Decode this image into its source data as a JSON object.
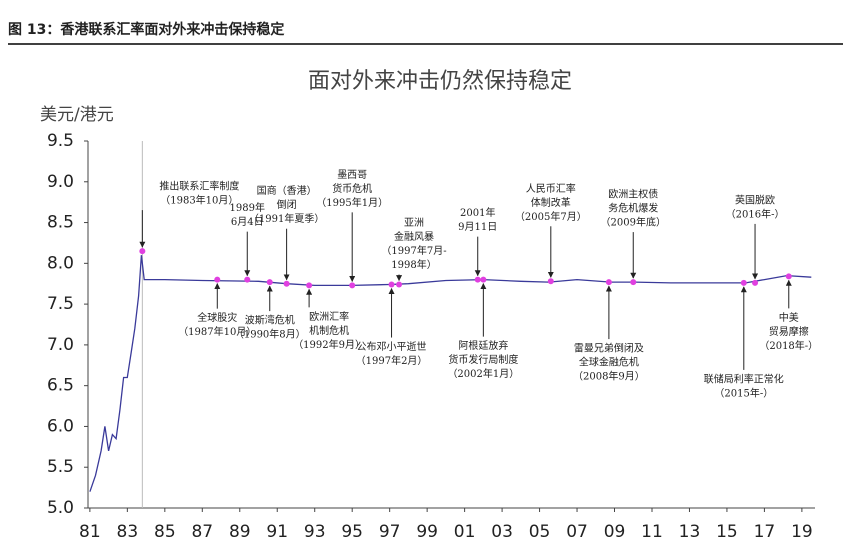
{
  "header": {
    "title": "图 13：香港联系汇率面对外来冲击保持稳定"
  },
  "chart_data": {
    "type": "line",
    "title": "面对外来冲击仍然保持稳定",
    "y_label": "美元/港元",
    "x": [
      1981.0,
      1981.3,
      1981.6,
      1981.8,
      1982.0,
      1982.2,
      1982.4,
      1982.6,
      1982.8,
      1983.0,
      1983.2,
      1983.4,
      1983.6,
      1983.75,
      1983.9,
      1985.0,
      1987.0,
      1990.0,
      1991.5,
      1993.0,
      1995.0,
      1997.0,
      1998.0,
      2000.0,
      2002.0,
      2004.0,
      2005.5,
      2007.0,
      2008.8,
      2010.0,
      2012.0,
      2014.0,
      2016.0,
      2017.0,
      2018.2,
      2019.5
    ],
    "series": [
      {
        "name": "美元/港元",
        "color": "#3a3a9a",
        "values": [
          5.2,
          5.4,
          5.7,
          6.0,
          5.7,
          5.9,
          5.85,
          6.2,
          6.6,
          6.6,
          6.9,
          7.2,
          7.6,
          8.1,
          7.8,
          7.8,
          7.79,
          7.78,
          7.75,
          7.73,
          7.73,
          7.74,
          7.75,
          7.79,
          7.8,
          7.78,
          7.77,
          7.8,
          7.77,
          7.77,
          7.76,
          7.76,
          7.76,
          7.8,
          7.85,
          7.83
        ]
      }
    ],
    "xlim": [
      1980.9,
      2019.7
    ],
    "xticks": [
      {
        "value": 1981,
        "label": "81"
      },
      {
        "value": 1983,
        "label": "83"
      },
      {
        "value": 1985,
        "label": "85"
      },
      {
        "value": 1987,
        "label": "87"
      },
      {
        "value": 1989,
        "label": "89"
      },
      {
        "value": 1991,
        "label": "91"
      },
      {
        "value": 1993,
        "label": "93"
      },
      {
        "value": 1995,
        "label": "95"
      },
      {
        "value": 1997,
        "label": "97"
      },
      {
        "value": 1999,
        "label": "99"
      },
      {
        "value": 2001,
        "label": "01"
      },
      {
        "value": 2003,
        "label": "03"
      },
      {
        "value": 2005,
        "label": "05"
      },
      {
        "value": 2007,
        "label": "07"
      },
      {
        "value": 2009,
        "label": "09"
      },
      {
        "value": 2011,
        "label": "11"
      },
      {
        "value": 2013,
        "label": "13"
      },
      {
        "value": 2015,
        "label": "15"
      },
      {
        "value": 2017,
        "label": "17"
      },
      {
        "value": 2019,
        "label": "19"
      }
    ],
    "ylim": [
      5,
      9.5
    ],
    "yticks": [
      {
        "value": 5,
        "label": "5.0"
      },
      5.5,
      {
        "value": 6,
        "label": "6.0"
      },
      6.5,
      {
        "value": 7,
        "label": "7.0"
      },
      7.5,
      {
        "value": 8,
        "label": "8.0"
      },
      8.5,
      {
        "value": 9,
        "label": "9.0"
      },
      9.5
    ],
    "reference_line_x": 1983.8,
    "marker_color": "#e040e0",
    "annotations": [
      {
        "x": 1983.8,
        "y": 8.15,
        "side": "above",
        "lines": [
          "推出联系汇率制度",
          "（1983年10月）"
        ]
      },
      {
        "x": 1989.4,
        "y": 7.8,
        "side": "above",
        "lines": [
          "1989年",
          "6月4日"
        ]
      },
      {
        "x": 1991.5,
        "y": 7.75,
        "side": "above",
        "lines": [
          "国商（香港）",
          "倒闭",
          "（1991年夏季）"
        ]
      },
      {
        "x": 1995.0,
        "y": 7.73,
        "side": "above",
        "lines": [
          "墨西哥",
          "货币危机",
          "（1995年1月）"
        ]
      },
      {
        "x": 1997.5,
        "y": 7.74,
        "side": "above",
        "lines": [
          "亚洲",
          "金融风暴",
          "（1997年7月-",
          "1998年）"
        ]
      },
      {
        "x": 2001.7,
        "y": 7.8,
        "side": "above",
        "lines": [
          "2001年",
          "9月11日"
        ]
      },
      {
        "x": 2005.6,
        "y": 7.78,
        "side": "above",
        "lines": [
          "人民币汇率",
          "体制改革",
          "（2005年7月）"
        ]
      },
      {
        "x": 2010.0,
        "y": 7.77,
        "side": "above",
        "lines": [
          "欧洲主权债",
          "务危机爆发",
          "（2009年底）"
        ]
      },
      {
        "x": 2016.5,
        "y": 7.76,
        "side": "above",
        "lines": [
          "英国脱欧",
          "（2016年-）"
        ]
      },
      {
        "x": 1987.8,
        "y": 7.8,
        "side": "below",
        "lines": [
          "全球股灾",
          "（1987年10月）"
        ]
      },
      {
        "x": 1990.6,
        "y": 7.77,
        "side": "below",
        "lines": [
          "波斯湾危机",
          "（1990年8月）"
        ]
      },
      {
        "x": 1992.7,
        "y": 7.73,
        "side": "below",
        "lines": [
          "欧洲汇率",
          "机制危机",
          "（1992年9月）"
        ]
      },
      {
        "x": 1997.1,
        "y": 7.74,
        "side": "below",
        "lines": [
          "公布邓小平逝世",
          "（1997年2月）"
        ]
      },
      {
        "x": 2002.0,
        "y": 7.8,
        "side": "below",
        "lines": [
          "阿根廷放弃",
          "货币发行局制度",
          "（2002年1月）"
        ]
      },
      {
        "x": 2008.7,
        "y": 7.77,
        "side": "below",
        "lines": [
          "雷曼兄弟倒闭及",
          "全球金融危机",
          "（2008年9月）"
        ]
      },
      {
        "x": 2015.9,
        "y": 7.76,
        "side": "below",
        "lines": [
          "联储局利率正常化",
          "（2015年-）"
        ]
      },
      {
        "x": 2018.3,
        "y": 7.84,
        "side": "below",
        "lines": [
          "中美",
          "贸易摩擦",
          "（2018年-）"
        ]
      }
    ]
  }
}
